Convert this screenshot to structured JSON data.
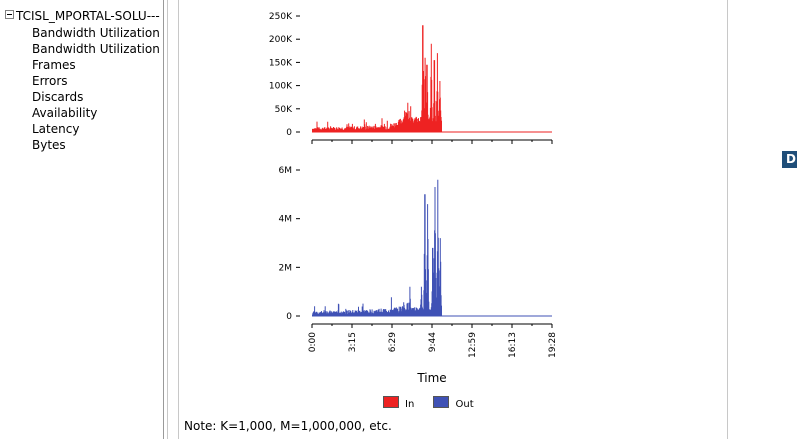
{
  "tree": {
    "root_label": "TCISL_MPORTAL-SOLU---",
    "items": [
      {
        "label": "Bandwidth Utilization"
      },
      {
        "label": "Bandwidth Utilization To"
      },
      {
        "label": "Frames"
      },
      {
        "label": "Errors"
      },
      {
        "label": "Discards"
      },
      {
        "label": "Availability"
      },
      {
        "label": "Latency"
      },
      {
        "label": "Bytes"
      }
    ]
  },
  "right_tab_label": "D",
  "chart_data": [
    {
      "type": "area",
      "series": [
        {
          "name": "In",
          "color": "#ee2222"
        }
      ],
      "yticks": [
        "250K",
        "200K",
        "150K",
        "100K",
        "50K",
        "0"
      ],
      "ylim": [
        0,
        250000
      ],
      "y_tick_values": [
        250000,
        200000,
        150000,
        100000,
        50000,
        0
      ],
      "x_range_minutes": [
        0,
        1168
      ],
      "profile": {
        "baseline_end": 480,
        "baseline": [
          [
            0,
            8000
          ],
          [
            120,
            9000
          ],
          [
            240,
            10000
          ],
          [
            360,
            12000
          ],
          [
            420,
            20000
          ],
          [
            460,
            40000
          ],
          [
            480,
            55000
          ]
        ],
        "burst_end": 630,
        "peaks": [
          [
            537,
            230000
          ],
          [
            548,
            160000
          ],
          [
            557,
            145000
          ],
          [
            578,
            190000
          ],
          [
            593,
            155000
          ],
          [
            608,
            170000
          ],
          [
            620,
            110000
          ]
        ]
      }
    },
    {
      "type": "area",
      "series": [
        {
          "name": "Out",
          "color": "#3f51b5"
        }
      ],
      "yticks": [
        "6M",
        "4M",
        "2M",
        "0"
      ],
      "ylim": [
        0,
        6000000
      ],
      "y_tick_values": [
        6000000,
        4000000,
        2000000,
        0
      ],
      "x_range_minutes": [
        0,
        1168
      ],
      "profile": {
        "baseline_end": 480,
        "baseline": [
          [
            0,
            150000
          ],
          [
            120,
            180000
          ],
          [
            240,
            200000
          ],
          [
            360,
            250000
          ],
          [
            420,
            300000
          ],
          [
            460,
            400000
          ],
          [
            480,
            600000
          ]
        ],
        "burst_end": 630,
        "peaks": [
          [
            530,
            1200000
          ],
          [
            547,
            5000000
          ],
          [
            560,
            4600000
          ],
          [
            585,
            2800000
          ],
          [
            596,
            5300000
          ],
          [
            610,
            5600000
          ],
          [
            622,
            3200000
          ]
        ]
      }
    }
  ],
  "x_axis": {
    "title": "Time",
    "ticks": [
      "0:00",
      "3:15",
      "6:29",
      "9:44",
      "12:59",
      "16:13",
      "19:28"
    ]
  },
  "legend": [
    {
      "label": "In",
      "color": "#ee2222"
    },
    {
      "label": "Out",
      "color": "#3f51b5"
    }
  ],
  "note": "Note: K=1,000, M=1,000,000, etc."
}
